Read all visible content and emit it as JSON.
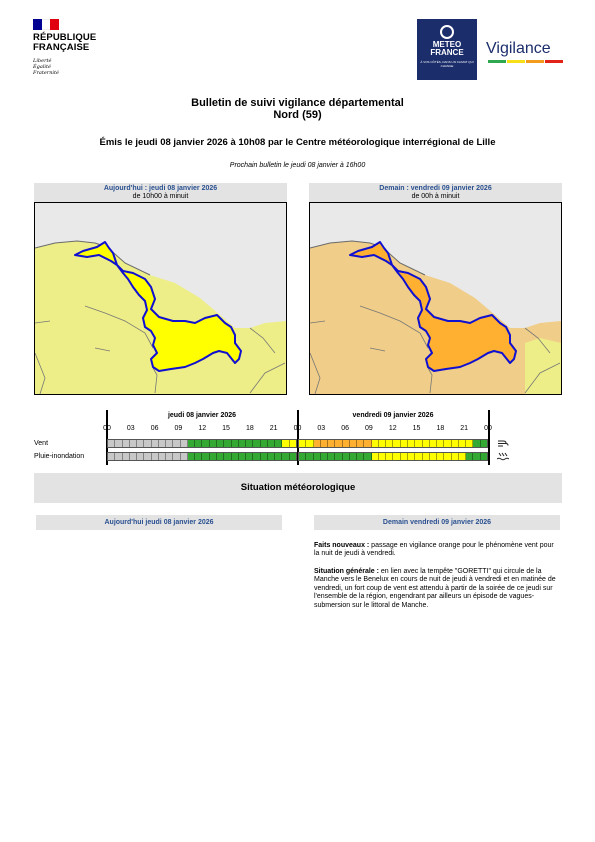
{
  "header": {
    "republic_line1": "RÉPUBLIQUE",
    "republic_line2": "FRANÇAISE",
    "motto": [
      "Liberté",
      "Égalité",
      "Fraternité"
    ],
    "flag_colors": [
      "#000091",
      "#ffffff",
      "#e1000f"
    ],
    "meteo_name_1": "METEO",
    "meteo_name_2": "FRANCE",
    "meteo_tagline": "À VOS CÔTÉS, DANS UN CLIMAT QUI CHANGE",
    "vigilance_label": "Vigilance",
    "vigilance_colors": [
      "#2fa84f",
      "#f7e017",
      "#f29b1d",
      "#e2231a"
    ]
  },
  "bulletin": {
    "title": "Bulletin de suivi vigilance départemental",
    "department": "Nord (59)",
    "issued": "Émis le jeudi 08 janvier 2026 à 10h08 par le Centre météorologique interrégional de Lille",
    "next": "Prochain bulletin le jeudi 08 janvier à 16h00"
  },
  "maps": {
    "today": {
      "heading": "Aujourd'hui : jeudi 08 janvier 2026",
      "sub": "de 10h00 à minuit",
      "level_color": "#ffff00",
      "surround_color": "#eeee88"
    },
    "tomorrow": {
      "heading": "Demain : vendredi 09 janvier 2026",
      "sub": "de 00h à minuit",
      "level_color": "#ffb030",
      "surround_color": "#f0cd88"
    }
  },
  "timeline": {
    "day1": "jeudi 08 janvier 2026",
    "day2": "vendredi 09 janvier 2026",
    "hours": [
      "00",
      "03",
      "06",
      "09",
      "12",
      "15",
      "18",
      "21",
      "00",
      "03",
      "06",
      "09",
      "12",
      "15",
      "18",
      "21",
      "00"
    ],
    "colors": {
      "past": "#c8c8c8",
      "green": "#33a833",
      "yellow": "#ffff00",
      "orange": "#ffb030"
    },
    "rows": [
      {
        "label": "Vent",
        "icon": "wind-icon",
        "day1": "pppppppppppgggggggggggggyy",
        "day2": "yyooooooooyyyyyyyyyyyyyygg"
      },
      {
        "label": "Pluie-inondation",
        "icon": "flood-icon",
        "day1": "pppppppppppggggggggggggggg",
        "day2": "ggggggggggyyyyyyyyyyyyyggg"
      }
    ]
  },
  "situation": {
    "title": "Situation météorologique",
    "today_heading": "Aujourd'hui jeudi 08 janvier 2026",
    "tomorrow_heading": "Demain vendredi 09 janvier 2026",
    "faits_label": "Faits nouveaux :",
    "faits_text": " passage en vigilance orange pour le phénomène vent pour la nuit de jeudi à vendredi.",
    "generale_label": "Situation générale :",
    "generale_text": " en lien avec la tempête \"GORETTI\" qui circule de la Manche vers le Benelux en cours de nuit de jeudi à vendredi et en matinée de vendredi, un fort coup de vent est attendu à partir de la soirée de ce jeudi sur l'ensemble de la région, engendrant par ailleurs un épisode de vagues-submersion sur le littoral de Manche."
  }
}
